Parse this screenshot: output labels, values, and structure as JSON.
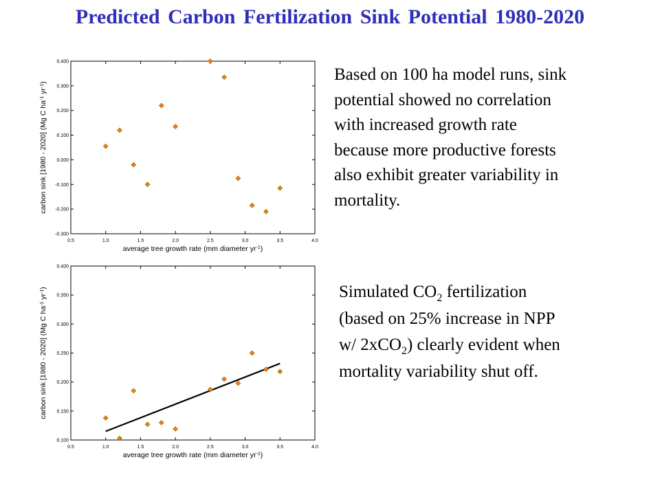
{
  "slide": {
    "title": "Predicted Carbon Fertilization Sink Potential  1980-2020"
  },
  "text_top": {
    "lines": [
      "Based on 100 ha model runs, sink",
      "potential showed no correlation",
      "with increased growth rate",
      "because more productive forests",
      "also exhibit greater variability in",
      "mortality."
    ]
  },
  "text_bottom": {
    "line1_a": "Simulated CO",
    "line1_sub": "2",
    "line1_b": " fertilization",
    "line2": "(based on 25% increase in NPP",
    "line3_a": "w/ 2xCO",
    "line3_sub": "2",
    "line3_b": ") clearly evident when",
    "line4": "mortality variability shut off."
  },
  "colors": {
    "title": "#2e2eb8",
    "marker": "#e8860f",
    "marker_edge": "#9a5200",
    "axis": "#000000"
  },
  "chart_data": [
    {
      "type": "scatter",
      "title": "",
      "xlabel": "average tree growth rate (mm diameter yr-1)",
      "ylabel": "carbon sink [1980 - 2020] (Mg C ha-1 yr-1)",
      "xlim": [
        0.5,
        4.0
      ],
      "ylim": [
        -0.3,
        0.4
      ],
      "xticks": [
        0.5,
        1.0,
        1.5,
        2.0,
        2.5,
        3.0,
        3.5,
        4.0
      ],
      "xtick_labels": [
        "0.5",
        "1.0",
        "1.5",
        "2.0",
        "2.5",
        "3.0",
        "3.5",
        "4.0"
      ],
      "yticks": [
        -0.3,
        -0.2,
        -0.1,
        0.0,
        0.1,
        0.2,
        0.3,
        0.4
      ],
      "ytick_labels": [
        "-0.300",
        "-0.200",
        "-0.100",
        "0.000",
        "0.100",
        "0.200",
        "0.300",
        "0.400"
      ],
      "grid": false,
      "x": [
        1.0,
        1.2,
        1.4,
        1.6,
        1.8,
        2.0,
        2.5,
        2.7,
        2.9,
        3.1,
        3.3,
        3.5
      ],
      "y": [
        0.055,
        0.12,
        -0.02,
        -0.1,
        0.22,
        0.135,
        0.4,
        0.335,
        -0.075,
        -0.185,
        -0.21,
        -0.115
      ]
    },
    {
      "type": "scatter",
      "title": "",
      "xlabel": "average tree growth rate (mm diameter yr-1)",
      "ylabel": "carbon sink [1980 - 2020] (Mg C ha-1 yr-1)",
      "xlim": [
        0.5,
        4.0
      ],
      "ylim": [
        0.1,
        0.4
      ],
      "xticks": [
        0.5,
        1.0,
        1.5,
        2.0,
        2.5,
        3.0,
        3.5,
        4.0
      ],
      "xtick_labels": [
        "0.5",
        "1.0",
        "1.5",
        "2.0",
        "2.5",
        "3.0",
        "3.5",
        "4.0"
      ],
      "yticks": [
        0.1,
        0.15,
        0.2,
        0.25,
        0.3,
        0.35,
        0.4
      ],
      "ytick_labels": [
        "0.100",
        "0.150",
        "0.200",
        "0.250",
        "0.300",
        "0.350",
        "0.400"
      ],
      "grid": false,
      "x": [
        1.0,
        1.2,
        1.4,
        1.6,
        1.8,
        2.0,
        2.5,
        2.7,
        2.9,
        3.1,
        3.3,
        3.5
      ],
      "y": [
        0.138,
        0.103,
        0.185,
        0.127,
        0.13,
        0.119,
        0.187,
        0.205,
        0.198,
        0.25,
        0.222,
        0.218
      ],
      "trendline": {
        "x": [
          1.0,
          3.5
        ],
        "y": [
          0.115,
          0.232
        ]
      }
    }
  ]
}
